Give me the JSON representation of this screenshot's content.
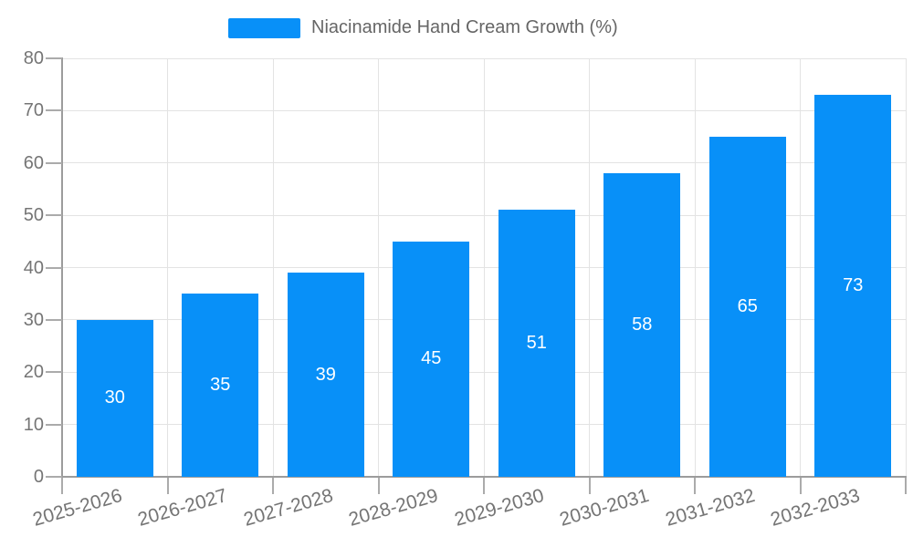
{
  "chart_data": {
    "type": "bar",
    "title": "Niacinamide Hand Cream Growth (%)",
    "legend": [
      "Niacinamide Hand Cream Growth (%)"
    ],
    "legend_position": "top",
    "categories": [
      "2025-2026",
      "2026-2027",
      "2027-2028",
      "2028-2029",
      "2029-2030",
      "2030-2031",
      "2031-2032",
      "2032-2033"
    ],
    "series": [
      {
        "name": "Niacinamide Hand Cream Growth (%)",
        "values": [
          30,
          35,
          39,
          45,
          51,
          58,
          65,
          73
        ]
      }
    ],
    "value_labels_shown": true,
    "xlabel": "",
    "ylabel": "",
    "ylim": [
      0,
      80
    ],
    "yticks": [
      0,
      10,
      20,
      30,
      40,
      50,
      60,
      70,
      80
    ],
    "grid": true,
    "colors": {
      "bar": "#0890F8",
      "background": "#ffffff",
      "grid": "#e3e3e3",
      "axis_line": "#9c9c9c",
      "tick": "#ababab",
      "axis_text": "#757575",
      "legend_text": "#666666",
      "value_label": "#ffffff"
    }
  }
}
